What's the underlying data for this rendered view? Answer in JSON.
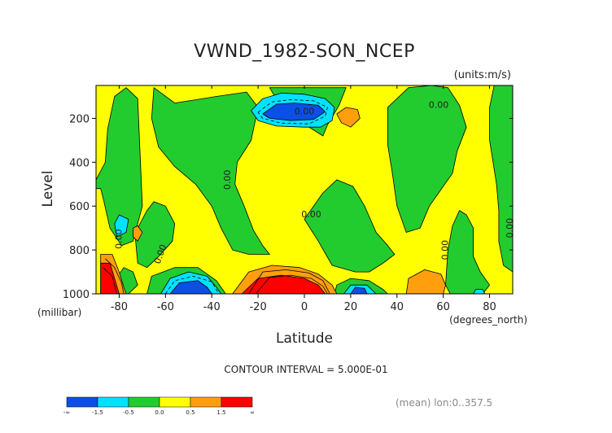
{
  "chart_data": {
    "type": "heatmap",
    "title": "VWND_1982-SON_NCEP",
    "units_label": "(units:m/s)",
    "xlabel": "Latitude",
    "x_units_label": "(degrees_north)",
    "ylabel": "Level",
    "y_units_label": "(millibar)",
    "x_range": [
      -90,
      90
    ],
    "y_range": [
      1000,
      50
    ],
    "y_axis_inverted": true,
    "x_ticks": [
      "-80",
      "-60",
      "-40",
      "-20",
      "0",
      "20",
      "40",
      "60",
      "80"
    ],
    "x_tick_values": [
      -80,
      -60,
      -40,
      -20,
      0,
      20,
      40,
      60,
      80
    ],
    "y_ticks": [
      "200",
      "400",
      "600",
      "800",
      "1000"
    ],
    "y_tick_values": [
      200,
      400,
      600,
      800,
      1000
    ],
    "contour_interval_text": "CONTOUR INTERVAL = 5.000E-01",
    "mean_text": "(mean) lon:0..357.5",
    "contour_labels": [
      {
        "text": "0.00",
        "x": 0,
        "y": 170,
        "rot": 0
      },
      {
        "text": "0.00",
        "x": 58,
        "y": 140,
        "rot": 0
      },
      {
        "text": "0.00",
        "x": -33,
        "y": 480,
        "rot": -90
      },
      {
        "text": "0.00",
        "x": 3,
        "y": 640,
        "rot": 0
      },
      {
        "text": "0.00",
        "x": -80,
        "y": 750,
        "rot": -90
      },
      {
        "text": "0.00",
        "x": -62,
        "y": 820,
        "rot": -70
      },
      {
        "text": "0.00",
        "x": 61,
        "y": 800,
        "rot": -90
      },
      {
        "text": "0.00",
        "x": 89,
        "y": 700,
        "rot": -90
      }
    ],
    "legend": {
      "colors": [
        "#0a4fe6",
        "#00e2ff",
        "#22cc2f",
        "#ffff00",
        "#ff9f0e",
        "#ff0000"
      ],
      "labels": [
        "-∞",
        "-1.5",
        "-0.5",
        "0.0",
        "0.5",
        "1.5",
        "∞"
      ]
    },
    "regions": [
      {
        "level": "0 to 0.5",
        "color": "#ffff00",
        "points": [
          [
            -90,
            50
          ],
          [
            90,
            50
          ],
          [
            90,
            1000
          ],
          [
            -90,
            1000
          ]
        ]
      },
      {
        "level": "-0.5 to 0",
        "color": "#22cc2f",
        "points": [
          [
            -85,
            250
          ],
          [
            -82,
            100
          ],
          [
            -77,
            60
          ],
          [
            -72,
            110
          ],
          [
            -70,
            600
          ],
          [
            -74,
            760
          ],
          [
            -79,
            780
          ],
          [
            -84,
            700
          ],
          [
            -87,
            560
          ],
          [
            -88,
            520
          ],
          [
            -90,
            520
          ],
          [
            -90,
            480
          ],
          [
            -86,
            400
          ]
        ]
      },
      {
        "level": "-0.5 to 0",
        "color": "#22cc2f",
        "points": [
          [
            -73,
            750
          ],
          [
            -72,
            700
          ],
          [
            -68,
            620
          ],
          [
            -65,
            580
          ],
          [
            -60,
            600
          ],
          [
            -56,
            680
          ],
          [
            -57,
            760
          ],
          [
            -63,
            830
          ],
          [
            -68,
            880
          ],
          [
            -72,
            860
          ]
        ]
      },
      {
        "level": "-0.5 to 0",
        "color": "#22cc2f",
        "points": [
          [
            -82,
            940
          ],
          [
            -78,
            880
          ],
          [
            -74,
            900
          ],
          [
            -72,
            960
          ],
          [
            -76,
            1000
          ],
          [
            -80,
            1000
          ]
        ]
      },
      {
        "level": "-0.5 to 0",
        "color": "#22cc2f",
        "points": [
          [
            -68,
            1000
          ],
          [
            -66,
            920
          ],
          [
            -56,
            880
          ],
          [
            -46,
            880
          ],
          [
            -38,
            940
          ],
          [
            -34,
            1000
          ]
        ]
      },
      {
        "level": "-0.5 to 0",
        "color": "#22cc2f",
        "points": [
          [
            -65,
            60
          ],
          [
            -56,
            130
          ],
          [
            -38,
            100
          ],
          [
            -25,
            80
          ],
          [
            -20,
            150
          ],
          [
            -23,
            300
          ],
          [
            -29,
            400
          ],
          [
            -30,
            500
          ],
          [
            -26,
            600
          ],
          [
            -22,
            710
          ],
          [
            -18,
            780
          ],
          [
            -15,
            820
          ],
          [
            -24,
            820
          ],
          [
            -31,
            800
          ],
          [
            -36,
            700
          ],
          [
            -40,
            600
          ],
          [
            -47,
            500
          ],
          [
            -56,
            420
          ],
          [
            -63,
            330
          ],
          [
            -66,
            200
          ]
        ]
      },
      {
        "level": "-0.5 to 0",
        "color": "#22cc2f",
        "points": [
          [
            -15,
            60
          ],
          [
            18,
            60
          ],
          [
            15,
            140
          ],
          [
            10,
            230
          ],
          [
            8,
            280
          ],
          [
            2,
            240
          ],
          [
            -2,
            220
          ],
          [
            -10,
            150
          ]
        ]
      },
      {
        "level": "-0.5 to 0",
        "color": "#22cc2f",
        "points": [
          [
            0,
            660
          ],
          [
            8,
            540
          ],
          [
            14,
            480
          ],
          [
            21,
            510
          ],
          [
            26,
            600
          ],
          [
            31,
            720
          ],
          [
            36,
            780
          ],
          [
            39,
            820
          ],
          [
            34,
            860
          ],
          [
            28,
            900
          ],
          [
            22,
            900
          ],
          [
            12,
            870
          ],
          [
            6,
            760
          ]
        ]
      },
      {
        "level": "-0.5 to 0",
        "color": "#22cc2f",
        "points": [
          [
            36,
            150
          ],
          [
            45,
            60
          ],
          [
            55,
            50
          ],
          [
            62,
            60
          ],
          [
            67,
            140
          ],
          [
            70,
            240
          ],
          [
            66,
            350
          ],
          [
            64,
            450
          ],
          [
            58,
            540
          ],
          [
            54,
            600
          ],
          [
            50,
            700
          ],
          [
            44,
            720
          ],
          [
            40,
            600
          ],
          [
            38,
            450
          ],
          [
            36,
            320
          ]
        ]
      },
      {
        "level": "-0.5 to 0",
        "color": "#22cc2f",
        "points": [
          [
            82,
            50
          ],
          [
            90,
            50
          ],
          [
            90,
            900
          ],
          [
            86,
            870
          ],
          [
            84,
            760
          ],
          [
            84,
            620
          ],
          [
            83,
            500
          ],
          [
            80,
            300
          ],
          [
            80,
            150
          ]
        ]
      },
      {
        "level": "-0.5 to 0",
        "color": "#22cc2f",
        "points": [
          [
            61,
            960
          ],
          [
            62,
            800
          ],
          [
            64,
            690
          ],
          [
            67,
            620
          ],
          [
            70,
            640
          ],
          [
            73,
            700
          ],
          [
            73,
            830
          ],
          [
            76,
            900
          ],
          [
            80,
            960
          ],
          [
            77,
            1000
          ],
          [
            63,
            1000
          ]
        ]
      },
      {
        "level": "-0.5 to 0",
        "color": "#22cc2f",
        "points": [
          [
            13,
            1000
          ],
          [
            14,
            960
          ],
          [
            20,
            930
          ],
          [
            28,
            940
          ],
          [
            34,
            980
          ],
          [
            36,
            1000
          ]
        ]
      },
      {
        "level": "-1.5 to -0.5",
        "color": "#00e2ff",
        "points": [
          [
            -23,
            165
          ],
          [
            -18,
            110
          ],
          [
            -10,
            85
          ],
          [
            0,
            90
          ],
          [
            9,
            110
          ],
          [
            13,
            150
          ],
          [
            12,
            210
          ],
          [
            7,
            240
          ],
          [
            0,
            240
          ],
          [
            -12,
            235
          ],
          [
            -20,
            210
          ]
        ]
      },
      {
        "level": "-1.5 to -0.5",
        "color": "#00e2ff",
        "points": [
          [
            -62,
            1000
          ],
          [
            -58,
            930
          ],
          [
            -50,
            900
          ],
          [
            -42,
            920
          ],
          [
            -38,
            970
          ],
          [
            -36,
            1000
          ]
        ]
      },
      {
        "level": "-1.5 to -0.5",
        "color": "#00e2ff",
        "points": [
          [
            17,
            1000
          ],
          [
            20,
            960
          ],
          [
            27,
            960
          ],
          [
            31,
            1000
          ]
        ]
      },
      {
        "level": "-1.5 to -0.5",
        "color": "#00e2ff",
        "points": [
          [
            -82,
            680
          ],
          [
            -80,
            640
          ],
          [
            -76,
            660
          ],
          [
            -77,
            720
          ],
          [
            -81,
            740
          ]
        ]
      },
      {
        "level": "-1.5 to -0.5",
        "color": "#00e2ff",
        "points": [
          [
            73,
            1000
          ],
          [
            74,
            980
          ],
          [
            77,
            980
          ],
          [
            78,
            1000
          ]
        ]
      },
      {
        "level": "< -1.5",
        "color": "#0a4fe6",
        "points": [
          [
            -18,
            180
          ],
          [
            -12,
            135
          ],
          [
            -4,
            130
          ],
          [
            6,
            140
          ],
          [
            9,
            170
          ],
          [
            4,
            205
          ],
          [
            -6,
            210
          ],
          [
            -15,
            200
          ]
        ]
      },
      {
        "level": "< -1.5",
        "color": "#0a4fe6",
        "points": [
          [
            -58,
            1000
          ],
          [
            -54,
            950
          ],
          [
            -46,
            940
          ],
          [
            -42,
            970
          ],
          [
            -40,
            1000
          ]
        ]
      },
      {
        "level": "< -1.5",
        "color": "#0a4fe6",
        "points": [
          [
            20,
            1000
          ],
          [
            22,
            970
          ],
          [
            26,
            975
          ],
          [
            27,
            1000
          ]
        ]
      },
      {
        "level": "0.5 to 1.5",
        "color": "#ff9f0e",
        "points": [
          [
            -31,
            1000
          ],
          [
            -24,
            900
          ],
          [
            -14,
            870
          ],
          [
            -2,
            880
          ],
          [
            6,
            910
          ],
          [
            12,
            960
          ],
          [
            14,
            1000
          ]
        ]
      },
      {
        "level": "0.5 to 1.5",
        "color": "#ff9f0e",
        "points": [
          [
            -88,
            820
          ],
          [
            -83,
            820
          ],
          [
            -80,
            900
          ],
          [
            -78,
            970
          ],
          [
            -77,
            1000
          ],
          [
            -88,
            1000
          ]
        ]
      },
      {
        "level": "0.5 to 1.5",
        "color": "#ff9f0e",
        "points": [
          [
            -74,
            700
          ],
          [
            -72,
            690
          ],
          [
            -70,
            720
          ],
          [
            -72,
            760
          ],
          [
            -74,
            740
          ]
        ]
      },
      {
        "level": "0.5 to 1.5",
        "color": "#ff9f0e",
        "points": [
          [
            14,
            180
          ],
          [
            18,
            150
          ],
          [
            23,
            160
          ],
          [
            24,
            200
          ],
          [
            20,
            240
          ],
          [
            16,
            220
          ]
        ]
      },
      {
        "level": "0.5 to 1.5",
        "color": "#ff9f0e",
        "points": [
          [
            44,
            1000
          ],
          [
            45,
            930
          ],
          [
            52,
            890
          ],
          [
            59,
            910
          ],
          [
            61,
            960
          ],
          [
            60,
            1000
          ]
        ]
      },
      {
        "level": "> 1.5",
        "color": "#ff0000",
        "points": [
          [
            -27,
            1000
          ],
          [
            -20,
            930
          ],
          [
            -10,
            915
          ],
          [
            0,
            930
          ],
          [
            6,
            960
          ],
          [
            9,
            1000
          ]
        ]
      },
      {
        "level": "> 1.5",
        "color": "#ff0000",
        "points": [
          [
            -88,
            860
          ],
          [
            -84,
            860
          ],
          [
            -82,
            930
          ],
          [
            -80,
            1000
          ],
          [
            -88,
            1000
          ]
        ]
      }
    ],
    "contour_lines": [
      {
        "style": "dashed",
        "points": [
          [
            -20,
            172
          ],
          [
            -14,
            125
          ],
          [
            -6,
            115
          ],
          [
            4,
            120
          ],
          [
            10,
            150
          ],
          [
            9,
            190
          ],
          [
            2,
            225
          ],
          [
            -10,
            222
          ],
          [
            -18,
            200
          ],
          [
            -20,
            172
          ]
        ]
      },
      {
        "style": "dashed",
        "points": [
          [
            -60,
            1000
          ],
          [
            -56,
            940
          ],
          [
            -48,
            920
          ],
          [
            -40,
            945
          ],
          [
            -37,
            1000
          ]
        ]
      },
      {
        "style": "solid",
        "points": [
          [
            -24,
            1000
          ],
          [
            -18,
            900
          ],
          [
            -8,
            890
          ],
          [
            2,
            905
          ],
          [
            8,
            940
          ],
          [
            11,
            1000
          ]
        ]
      },
      {
        "style": "solid",
        "points": [
          [
            -21,
            1000
          ],
          [
            -15,
            925
          ],
          [
            -6,
            915
          ],
          [
            3,
            930
          ],
          [
            8,
            965
          ],
          [
            10,
            1000
          ]
        ]
      },
      {
        "style": "solid",
        "points": [
          [
            -86,
            840
          ],
          [
            -82,
            880
          ],
          [
            -79,
            950
          ],
          [
            -78,
            1000
          ]
        ]
      },
      {
        "style": "solid",
        "points": [
          [
            -87,
            880
          ],
          [
            -83,
            920
          ],
          [
            -81,
            1000
          ]
        ]
      }
    ]
  }
}
